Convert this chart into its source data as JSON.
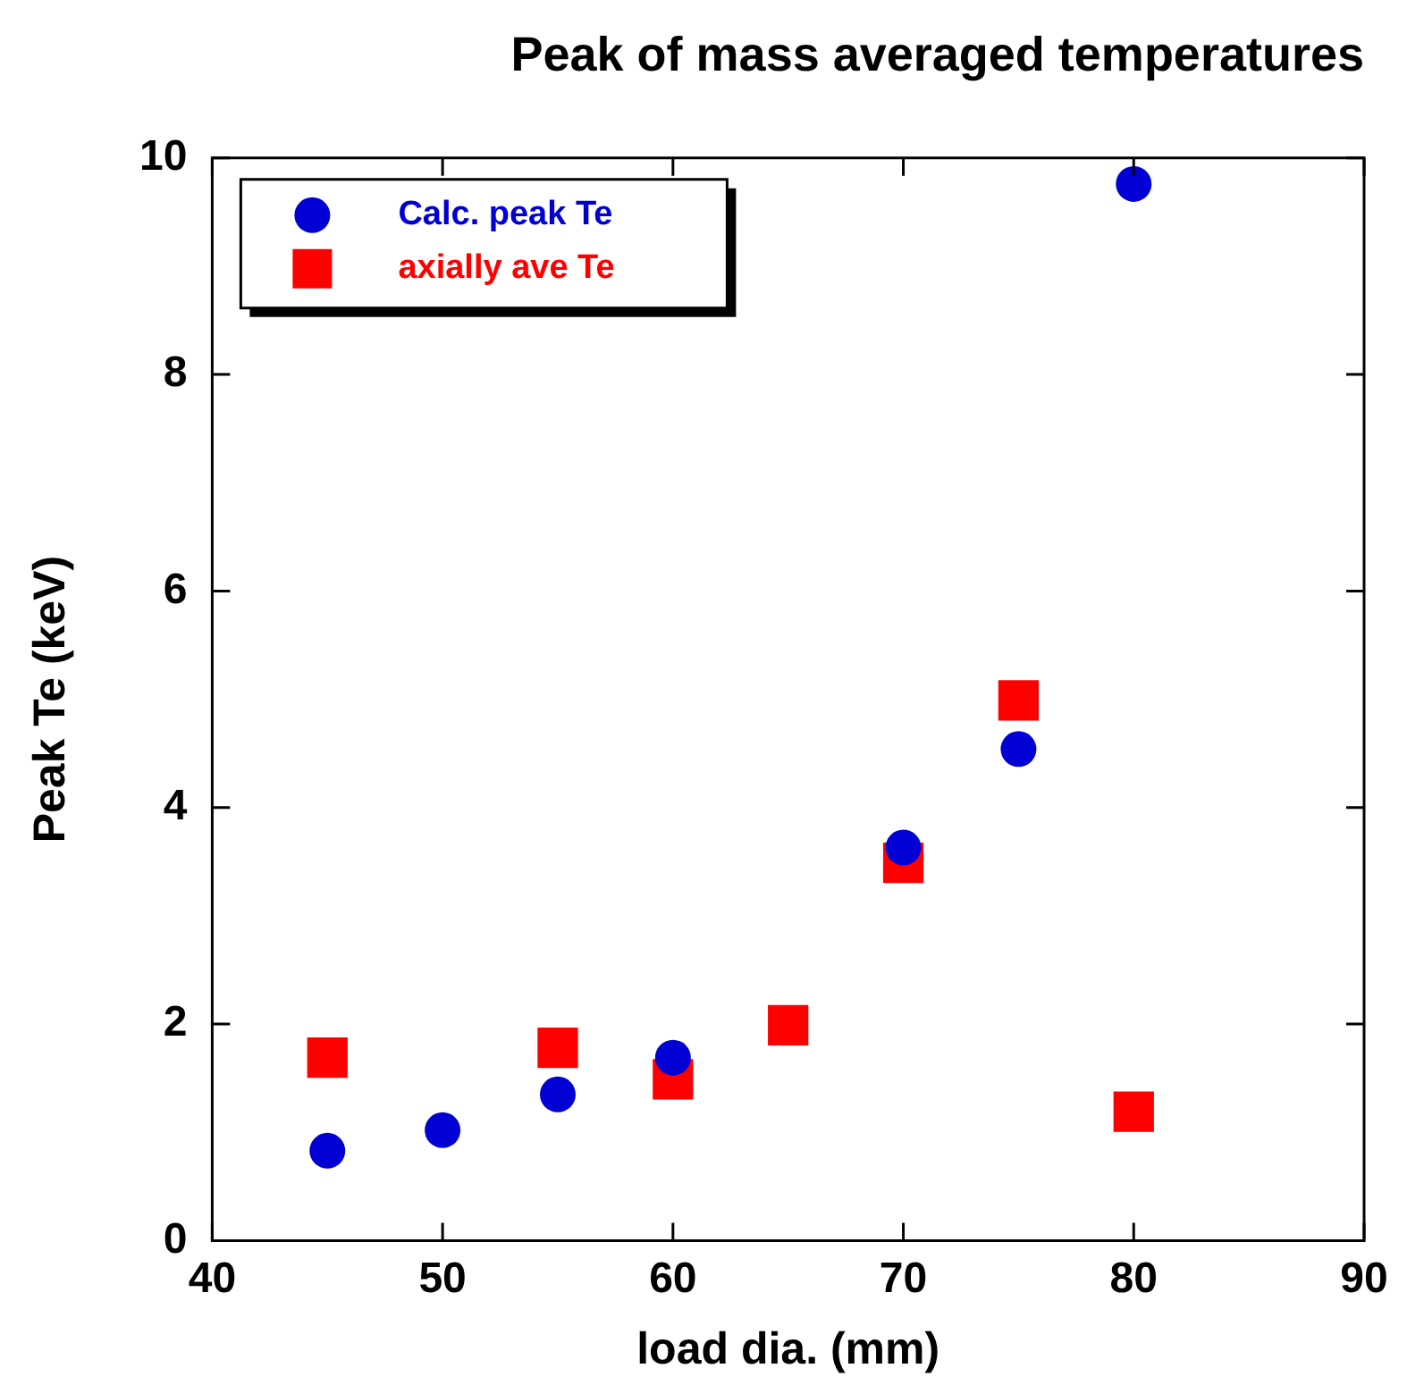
{
  "chart_data": {
    "type": "scatter",
    "title": "Peak of mass averaged temperatures",
    "xlabel": "load dia. (mm)",
    "ylabel": "Peak Te (keV)",
    "series": [
      {
        "name": "Calc. peak Te",
        "color": "#0000d4",
        "marker": "circle",
        "x": [
          45,
          50,
          55,
          60,
          70,
          75,
          80
        ],
        "values": [
          0.83,
          1.02,
          1.35,
          1.69,
          3.63,
          4.54,
          9.76
        ]
      },
      {
        "name": "axially ave Te",
        "color": "#ff0000",
        "marker": "square",
        "x": [
          45,
          55,
          60,
          65,
          70,
          75,
          80
        ],
        "values": [
          1.69,
          1.78,
          1.49,
          1.99,
          3.49,
          4.99,
          1.19
        ]
      }
    ],
    "xlim": [
      40,
      90
    ],
    "xticks": [
      40,
      50,
      60,
      70,
      80,
      90
    ],
    "ylim": [
      0,
      10
    ],
    "yticks": [
      0,
      2,
      4,
      6,
      8,
      10
    ],
    "grid": false,
    "legend": "top left"
  }
}
